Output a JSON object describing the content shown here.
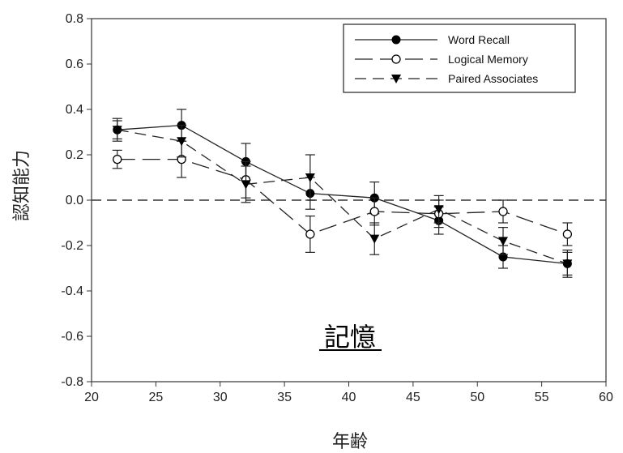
{
  "chart_data": {
    "type": "line",
    "title": "",
    "xlabel": "年齢",
    "ylabel": "認知能力",
    "annotation": "記憶",
    "xlim": [
      20,
      60
    ],
    "ylim": [
      -0.8,
      0.8
    ],
    "xticks": [
      20,
      25,
      30,
      35,
      40,
      45,
      50,
      55,
      60
    ],
    "yticks": [
      -0.8,
      -0.6,
      -0.4,
      -0.2,
      0.0,
      0.2,
      0.4,
      0.6,
      0.8
    ],
    "ytick_labels": [
      "-0.8",
      "-0.6",
      "-0.4",
      "-0.2",
      "0.0",
      "0.2",
      "0.4",
      "0.6",
      "0.8"
    ],
    "reference_line": 0.0,
    "grid": false,
    "legend_position": "top-right",
    "x": [
      22,
      27,
      32,
      37,
      42,
      47,
      52,
      57
    ],
    "series": [
      {
        "name": "Word Recall",
        "marker": "filled-circle",
        "line": "solid",
        "values": [
          0.31,
          0.33,
          0.17,
          0.03,
          0.01,
          -0.09,
          -0.25,
          -0.28
        ],
        "errors": [
          0.04,
          0.07,
          0.08,
          0.07,
          0.07,
          0.06,
          0.05,
          0.05
        ]
      },
      {
        "name": "Logical Memory",
        "marker": "open-circle",
        "line": "long-dash",
        "values": [
          0.18,
          0.18,
          0.09,
          -0.15,
          -0.05,
          -0.06,
          -0.05,
          -0.15
        ],
        "errors": [
          0.04,
          0.08,
          0.08,
          0.08,
          0.06,
          0.06,
          0.05,
          0.05
        ]
      },
      {
        "name": "Paired Associates",
        "marker": "filled-triangle-down",
        "line": "dash",
        "values": [
          0.31,
          0.26,
          0.07,
          0.1,
          -0.17,
          -0.04,
          -0.18,
          -0.28
        ],
        "errors": [
          0.05,
          0.07,
          0.08,
          0.1,
          0.07,
          0.06,
          0.06,
          0.06
        ]
      }
    ]
  }
}
